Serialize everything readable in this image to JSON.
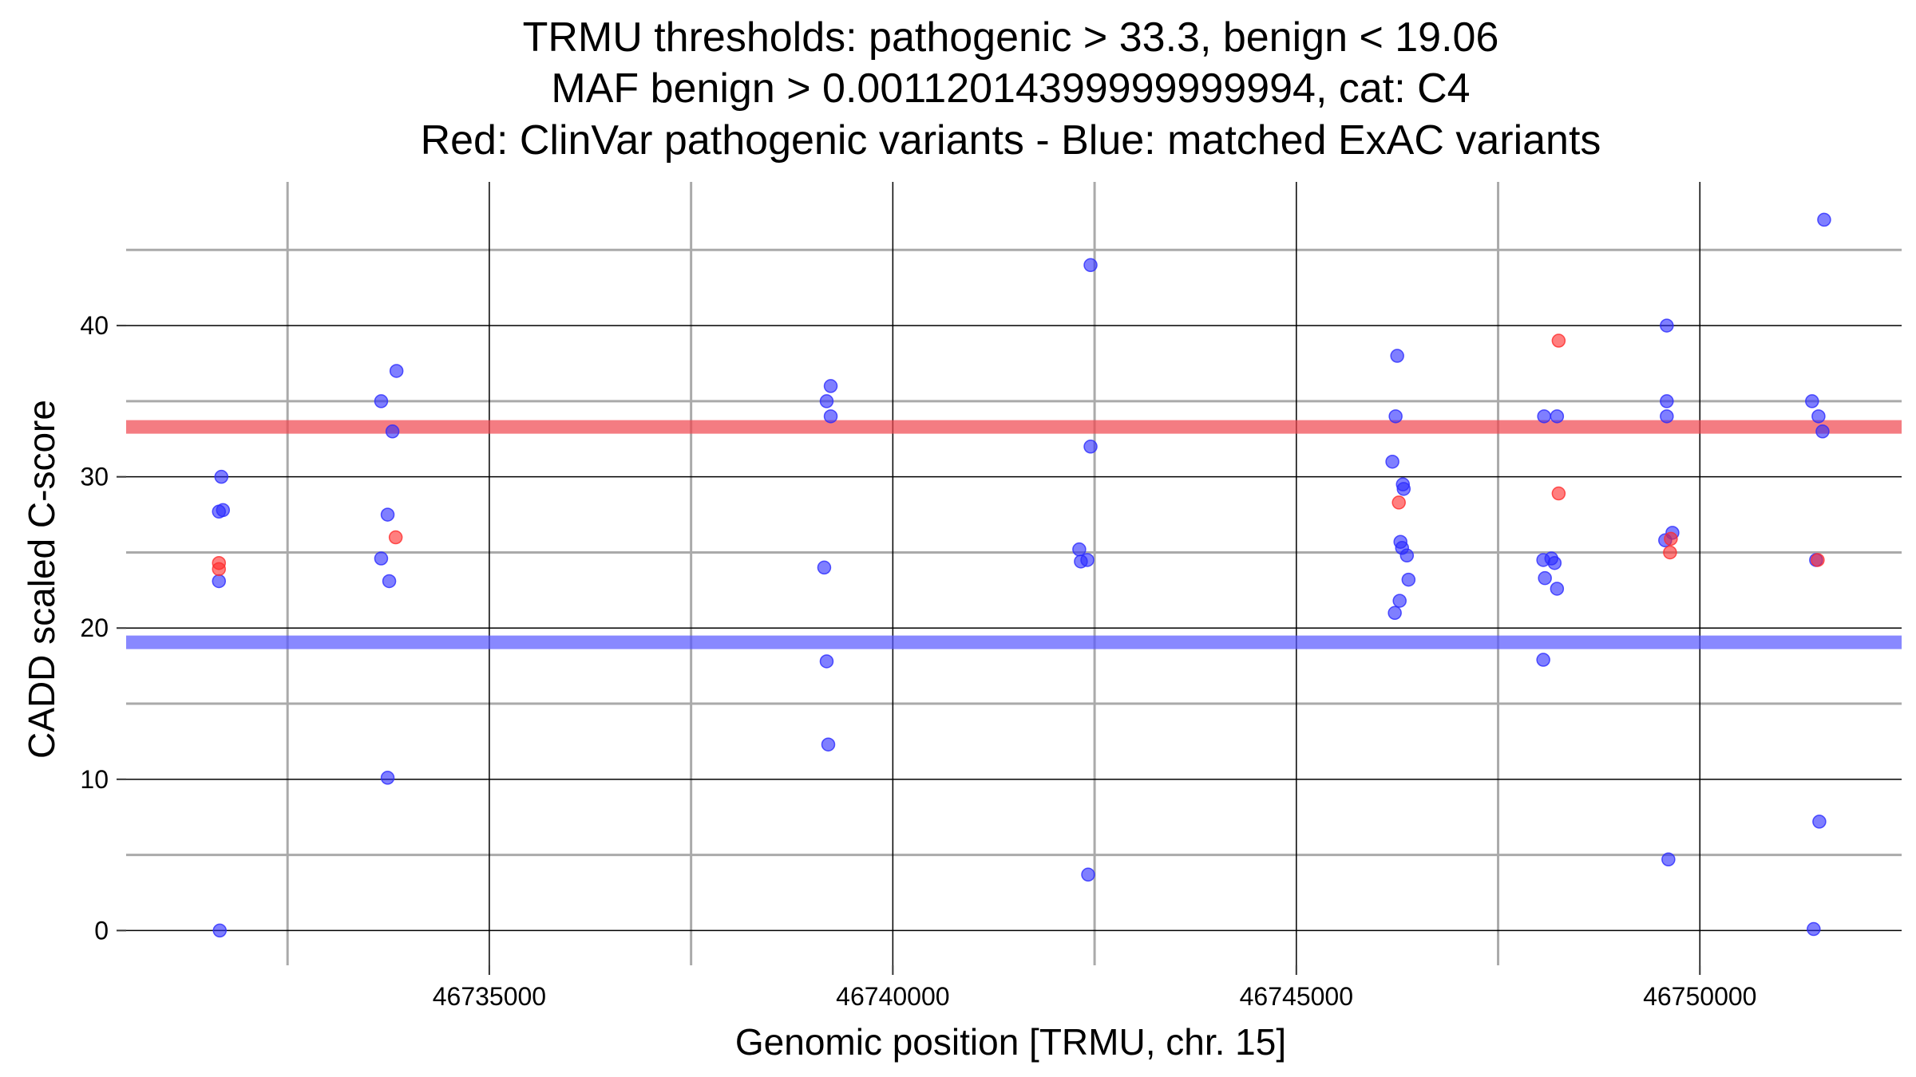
{
  "chart_data": {
    "type": "scatter",
    "title_lines": [
      "TRMU thresholds: pathogenic > 33.3, benign < 19.06",
      "MAF benign > 0.00112014399999999994, cat: C4",
      "Red: ClinVar pathogenic variants - Blue: matched ExAC variants"
    ],
    "xlabel": "Genomic position [TRMU, chr. 15]",
    "ylabel": "CADD scaled C-score",
    "xlim": [
      46730500,
      46752500
    ],
    "ylim": [
      -2.3,
      49.5
    ],
    "x_ticks": [
      46735000,
      46740000,
      46745000,
      46750000
    ],
    "x_tick_labels": [
      "46735000",
      "46740000",
      "46745000",
      "46750000"
    ],
    "x_minor_ticks": [
      46732500,
      46737500,
      46742500,
      46747500
    ],
    "y_ticks": [
      0,
      10,
      20,
      30,
      40
    ],
    "y_tick_labels": [
      "0",
      "10",
      "20",
      "30",
      "40"
    ],
    "y_minor_ticks": [
      5,
      15,
      25,
      35,
      45
    ],
    "thresholds": [
      {
        "name": "pathogenic",
        "value": 33.3,
        "color": "#f0454d"
      },
      {
        "name": "benign",
        "value": 19.06,
        "color": "#5555ff"
      }
    ],
    "colors": {
      "clinvar": "#ff2a2a",
      "exac": "#2a2aff",
      "point_stroke": "#3333cc"
    },
    "series": [
      {
        "name": "ClinVar pathogenic",
        "color": "#ff2a2a",
        "points": [
          {
            "x": 46731650,
            "y": 24.3
          },
          {
            "x": 46731650,
            "y": 23.9
          },
          {
            "x": 46733840,
            "y": 26.0
          },
          {
            "x": 46748250,
            "y": 39.0
          },
          {
            "x": 46748250,
            "y": 28.9
          },
          {
            "x": 46746270,
            "y": 28.3
          },
          {
            "x": 46749640,
            "y": 25.9
          },
          {
            "x": 46749630,
            "y": 25.0
          },
          {
            "x": 46751460,
            "y": 24.5
          }
        ]
      },
      {
        "name": "matched ExAC",
        "color": "#2a2aff",
        "points": [
          {
            "x": 46731680,
            "y": 30.0
          },
          {
            "x": 46731650,
            "y": 27.7
          },
          {
            "x": 46731700,
            "y": 27.8
          },
          {
            "x": 46731650,
            "y": 23.1
          },
          {
            "x": 46731660,
            "y": 0.0
          },
          {
            "x": 46733660,
            "y": 35.0
          },
          {
            "x": 46733850,
            "y": 37.0
          },
          {
            "x": 46733800,
            "y": 33.0
          },
          {
            "x": 46733740,
            "y": 27.5
          },
          {
            "x": 46733660,
            "y": 24.6
          },
          {
            "x": 46733760,
            "y": 23.1
          },
          {
            "x": 46733740,
            "y": 10.1
          },
          {
            "x": 46739230,
            "y": 36.0
          },
          {
            "x": 46739180,
            "y": 35.0
          },
          {
            "x": 46739230,
            "y": 34.0
          },
          {
            "x": 46739150,
            "y": 24.0
          },
          {
            "x": 46739180,
            "y": 17.8
          },
          {
            "x": 46739200,
            "y": 12.3
          },
          {
            "x": 46742450,
            "y": 44.0
          },
          {
            "x": 46742450,
            "y": 32.0
          },
          {
            "x": 46742310,
            "y": 25.2
          },
          {
            "x": 46742410,
            "y": 24.5
          },
          {
            "x": 46742330,
            "y": 24.4
          },
          {
            "x": 46742420,
            "y": 3.7
          },
          {
            "x": 46746250,
            "y": 38.0
          },
          {
            "x": 46746230,
            "y": 34.0
          },
          {
            "x": 46746190,
            "y": 31.0
          },
          {
            "x": 46746320,
            "y": 29.5
          },
          {
            "x": 46746330,
            "y": 29.2
          },
          {
            "x": 46746290,
            "y": 25.7
          },
          {
            "x": 46746310,
            "y": 25.3
          },
          {
            "x": 46746370,
            "y": 24.8
          },
          {
            "x": 46746390,
            "y": 23.2
          },
          {
            "x": 46746280,
            "y": 21.8
          },
          {
            "x": 46746220,
            "y": 21.0
          },
          {
            "x": 46748070,
            "y": 34.0
          },
          {
            "x": 46748230,
            "y": 34.0
          },
          {
            "x": 46748060,
            "y": 24.5
          },
          {
            "x": 46748160,
            "y": 24.6
          },
          {
            "x": 46748200,
            "y": 24.3
          },
          {
            "x": 46748080,
            "y": 23.3
          },
          {
            "x": 46748230,
            "y": 22.6
          },
          {
            "x": 46748060,
            "y": 17.9
          },
          {
            "x": 46749590,
            "y": 40.0
          },
          {
            "x": 46749590,
            "y": 35.0
          },
          {
            "x": 46749590,
            "y": 34.0
          },
          {
            "x": 46749660,
            "y": 26.3
          },
          {
            "x": 46749570,
            "y": 25.8
          },
          {
            "x": 46749610,
            "y": 4.7
          },
          {
            "x": 46751540,
            "y": 47.0
          },
          {
            "x": 46751390,
            "y": 35.0
          },
          {
            "x": 46751470,
            "y": 34.0
          },
          {
            "x": 46751520,
            "y": 33.0
          },
          {
            "x": 46751440,
            "y": 24.5
          },
          {
            "x": 46751480,
            "y": 7.2
          },
          {
            "x": 46751410,
            "y": 0.1
          }
        ]
      }
    ]
  }
}
